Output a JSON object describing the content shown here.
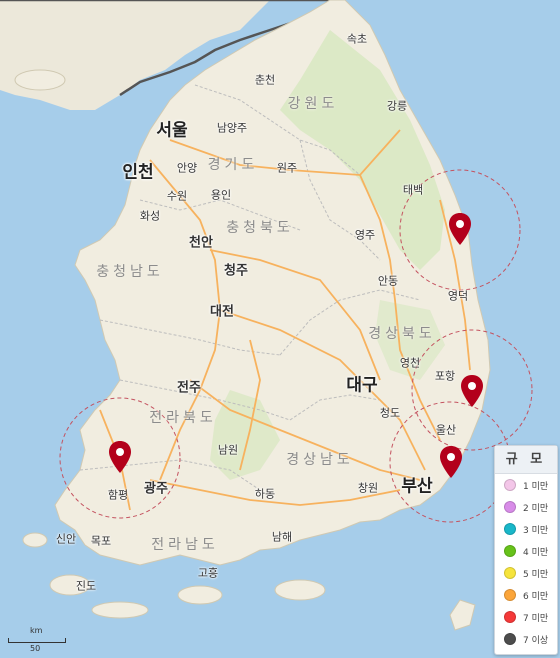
{
  "map": {
    "colors": {
      "sea": "#a6cdea",
      "land": "#f1ede0",
      "forest": "#d7e7bf",
      "highway": "#f7b25e",
      "province_border": "#bdbdbd",
      "marker": "#b3001b",
      "radius_ring": "#c4525f"
    },
    "cities": [
      {
        "name": "속초",
        "size": "small"
      },
      {
        "name": "춘천",
        "size": "small"
      },
      {
        "name": "강릉",
        "size": "small"
      },
      {
        "name": "서울",
        "size": "major"
      },
      {
        "name": "남양주",
        "size": "small"
      },
      {
        "name": "인천",
        "size": "major"
      },
      {
        "name": "안양",
        "size": "small"
      },
      {
        "name": "수원",
        "size": "small"
      },
      {
        "name": "용인",
        "size": "small"
      },
      {
        "name": "원주",
        "size": "small"
      },
      {
        "name": "화성",
        "size": "small"
      },
      {
        "name": "태백",
        "size": "small"
      },
      {
        "name": "천안",
        "size": "medium"
      },
      {
        "name": "청주",
        "size": "medium"
      },
      {
        "name": "영주",
        "size": "small"
      },
      {
        "name": "안동",
        "size": "small"
      },
      {
        "name": "영덕",
        "size": "small"
      },
      {
        "name": "대전",
        "size": "medium"
      },
      {
        "name": "영천",
        "size": "small"
      },
      {
        "name": "포항",
        "size": "small"
      },
      {
        "name": "전주",
        "size": "medium"
      },
      {
        "name": "대구",
        "size": "major"
      },
      {
        "name": "청도",
        "size": "small"
      },
      {
        "name": "울산",
        "size": "small"
      },
      {
        "name": "남원",
        "size": "small"
      },
      {
        "name": "광주",
        "size": "medium"
      },
      {
        "name": "함평",
        "size": "small"
      },
      {
        "name": "하동",
        "size": "small"
      },
      {
        "name": "창원",
        "size": "small"
      },
      {
        "name": "부산",
        "size": "major"
      },
      {
        "name": "신안",
        "size": "small"
      },
      {
        "name": "목포",
        "size": "small"
      },
      {
        "name": "남해",
        "size": "small"
      },
      {
        "name": "고흥",
        "size": "small"
      },
      {
        "name": "진도",
        "size": "small"
      }
    ],
    "provinces": [
      "강원도",
      "경기도",
      "충청북도",
      "충청남도",
      "경상북도",
      "전라북도",
      "경상남도",
      "전라남도"
    ],
    "markers": [
      {
        "label": "epicenter-1",
        "ring": true
      },
      {
        "label": "epicenter-2",
        "ring": true
      },
      {
        "label": "epicenter-3",
        "ring": true
      },
      {
        "label": "epicenter-4",
        "ring": true
      }
    ]
  },
  "legend": {
    "title": "규 모",
    "items": [
      {
        "label": "1 미만",
        "color": "#f3c6e8"
      },
      {
        "label": "2 미만",
        "color": "#d88ce8"
      },
      {
        "label": "3 미만",
        "color": "#19b7c9"
      },
      {
        "label": "4 미만",
        "color": "#67c21a"
      },
      {
        "label": "5 미만",
        "color": "#f6e43c"
      },
      {
        "label": "6 미만",
        "color": "#fba53a"
      },
      {
        "label": "7 미만",
        "color": "#f53939"
      },
      {
        "label": "7 이상",
        "color": "#4d4d4d"
      }
    ]
  },
  "scale": {
    "unit": "km",
    "value": "50"
  }
}
